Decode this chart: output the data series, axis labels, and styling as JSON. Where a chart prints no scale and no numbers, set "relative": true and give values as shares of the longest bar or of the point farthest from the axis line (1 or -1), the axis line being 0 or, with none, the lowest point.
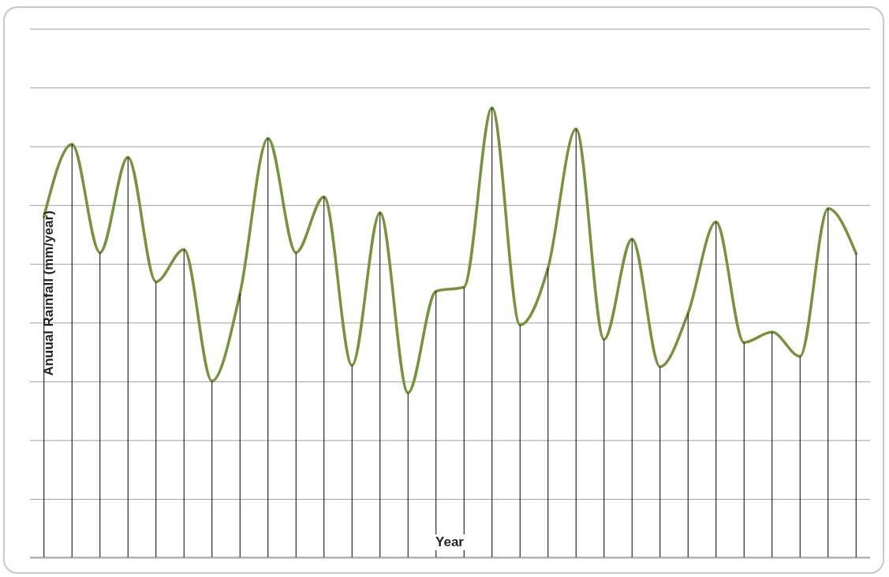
{
  "chart_data": {
    "type": "line",
    "relative": true,
    "xlabel": "Year",
    "ylabel": "Anuual Rainfall (mm/year)",
    "categories": [
      null,
      null,
      null,
      null,
      null,
      null,
      null,
      null,
      null,
      null,
      null,
      null,
      null,
      null,
      null,
      null,
      null,
      null,
      null,
      null,
      null,
      null,
      null,
      null,
      null,
      null,
      null,
      null,
      null,
      null
    ],
    "series": [
      {
        "color": "#77933c",
        "values": [
          0.758,
          0.919,
          0.678,
          0.89,
          0.613,
          0.685,
          0.392,
          0.587,
          0.932,
          0.678,
          0.802,
          0.427,
          0.767,
          0.366,
          0.592,
          0.601,
          1,
          0.517,
          0.644,
          0.953,
          0.485,
          0.708,
          0.424,
          0.543,
          0.746,
          0.478,
          0.501,
          0.447,
          0.776,
          0.676
        ]
      }
    ],
    "grid": true,
    "marker": "none",
    "line_style": "solid"
  }
}
